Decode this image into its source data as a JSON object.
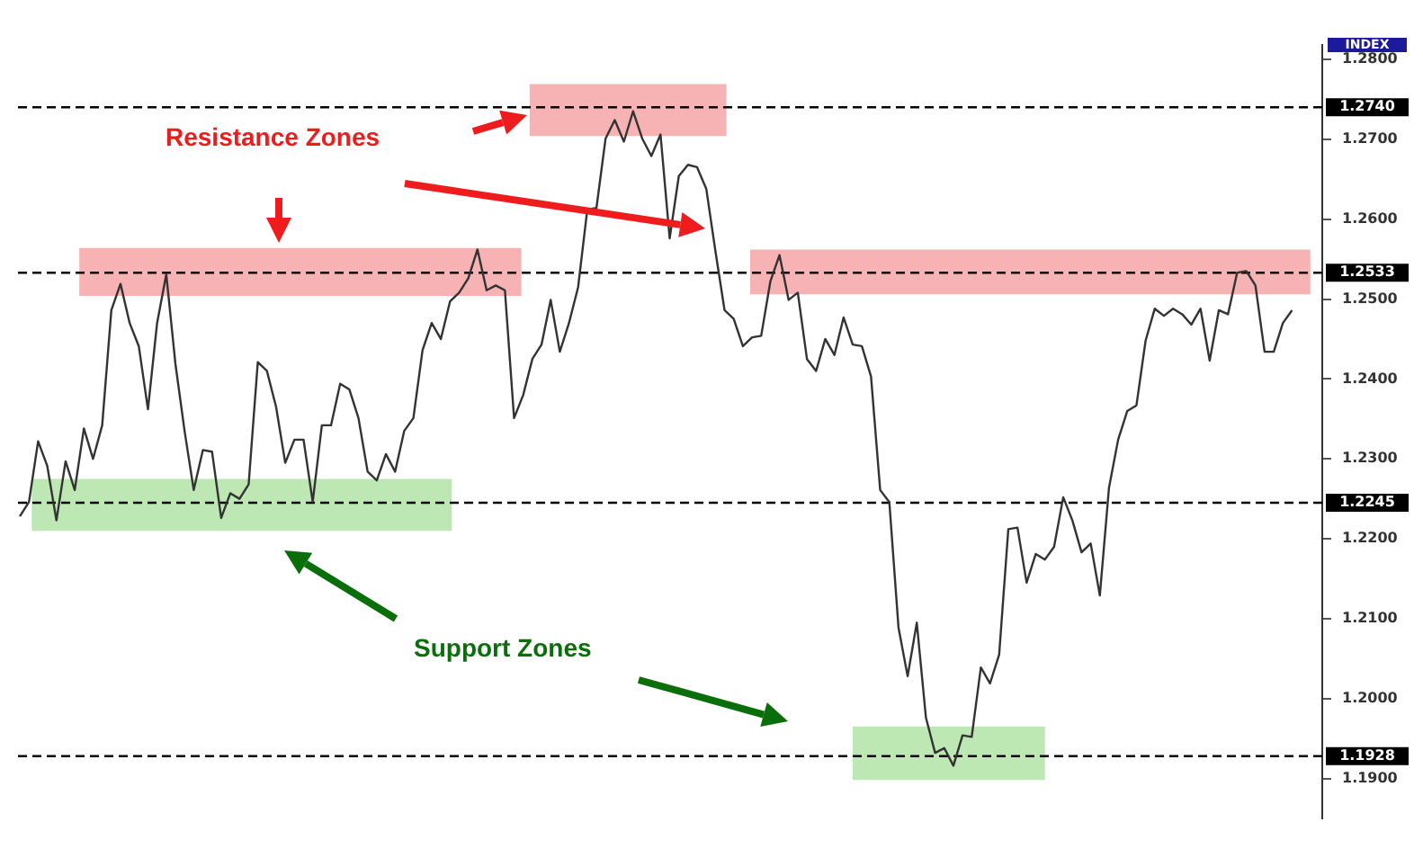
{
  "chart_data": {
    "type": "line",
    "ylabel": "INDEX",
    "categories": [
      null,
      null,
      null,
      null,
      null,
      null,
      null,
      null,
      null,
      null,
      null,
      null,
      null,
      null,
      null,
      null,
      null,
      null,
      null,
      null,
      null,
      null,
      null,
      null,
      null,
      null,
      null,
      null,
      null,
      null,
      null,
      null,
      null,
      null,
      null,
      null,
      null,
      null,
      null,
      null,
      null,
      null,
      null,
      null,
      null,
      null,
      null,
      null,
      null,
      null,
      null,
      null,
      null,
      null,
      null,
      null,
      null,
      null,
      null,
      null,
      null,
      null,
      null,
      null,
      null,
      null,
      null,
      null,
      null,
      null,
      null,
      null,
      null,
      null,
      null,
      null,
      null,
      null,
      null,
      null,
      null,
      null,
      null,
      null,
      null,
      null,
      null,
      null,
      null,
      null,
      null,
      null,
      null,
      null,
      null,
      null,
      null,
      null,
      null,
      null,
      null,
      null,
      null,
      null,
      null,
      null,
      null,
      null,
      null,
      null,
      null,
      null,
      null,
      null,
      null,
      null,
      null,
      null,
      null,
      null,
      null,
      null,
      null,
      null,
      null,
      null,
      null,
      null,
      null,
      null,
      null,
      null,
      null,
      null,
      null,
      null,
      null,
      null,
      null,
      null
    ],
    "series": [
      {
        "color": "#333333",
        "values": [
          1.2228,
          1.2246,
          1.2322,
          1.2291,
          1.2223,
          1.2297,
          1.2261,
          1.2338,
          1.23,
          1.2342,
          1.2486,
          1.2519,
          1.247,
          1.2441,
          1.2362,
          1.247,
          1.2531,
          1.2419,
          1.2335,
          1.2261,
          1.2311,
          1.2309,
          1.2226,
          1.2257,
          1.225,
          1.2268,
          1.2421,
          1.241,
          1.2365,
          1.2295,
          1.2324,
          1.2324,
          1.2246,
          1.2342,
          1.2342,
          1.2394,
          1.2387,
          1.2351,
          1.2284,
          1.2273,
          1.2306,
          1.2284,
          1.2335,
          1.2351,
          1.2436,
          1.247,
          1.245,
          1.2497,
          1.2508,
          1.2526,
          1.2562,
          1.2511,
          1.2517,
          1.2511,
          1.2351,
          1.238,
          1.2425,
          1.2443,
          1.2499,
          1.2434,
          1.247,
          1.2515,
          1.2612,
          1.2614,
          1.2701,
          1.2724,
          1.2697,
          1.2735,
          1.2701,
          1.2679,
          1.2706,
          1.2576,
          1.2654,
          1.2668,
          1.2665,
          1.2638,
          1.256,
          1.2486,
          1.2475,
          1.2441,
          1.2452,
          1.2454,
          1.2522,
          1.2555,
          1.2499,
          1.2508,
          1.2425,
          1.241,
          1.245,
          1.243,
          1.2477,
          1.2443,
          1.2441,
          1.2403,
          1.2261,
          1.2246,
          1.2089,
          1.2028,
          1.2095,
          1.1976,
          1.1932,
          1.1938,
          1.1916,
          1.1954,
          1.1952,
          1.2039,
          1.2019,
          1.2055,
          1.2212,
          1.2214,
          1.2145,
          1.2181,
          1.2174,
          1.219,
          1.2252,
          1.2223,
          1.2183,
          1.2194,
          1.2129,
          1.2264,
          1.2324,
          1.236,
          1.2367,
          1.2448,
          1.2488,
          1.2479,
          1.2488,
          1.2481,
          1.2468,
          1.2488,
          1.2423,
          1.2486,
          1.2481,
          1.2533,
          1.2535,
          1.2517,
          1.2434,
          1.2434,
          1.247,
          1.2486
        ]
      }
    ],
    "marker": "none",
    "line_style": "solid",
    "ylim": [
      1.185,
      1.2818
    ],
    "yticks": [
      {
        "value": 1.19,
        "label": "1.1900"
      },
      {
        "value": 1.2,
        "label": "1.2000"
      },
      {
        "value": 1.21,
        "label": "1.2100"
      },
      {
        "value": 1.22,
        "label": "1.2200"
      },
      {
        "value": 1.23,
        "label": "1.2300"
      },
      {
        "value": 1.24,
        "label": "1.2400"
      },
      {
        "value": 1.25,
        "label": "1.2500"
      },
      {
        "value": 1.26,
        "label": "1.2600"
      },
      {
        "value": 1.27,
        "label": "1.2700"
      },
      {
        "value": 1.28,
        "label": "1.2800"
      }
    ],
    "ref_lines": [
      {
        "axis": "y",
        "value": 1.274,
        "label": "1.2740",
        "line_style": "dashed",
        "color": "#000000"
      },
      {
        "axis": "y",
        "value": 1.2533,
        "label": "1.2533",
        "line_style": "dashed",
        "color": "#000000"
      },
      {
        "axis": "y",
        "value": 1.2245,
        "label": "1.2245",
        "line_style": "dashed",
        "color": "#000000"
      },
      {
        "axis": "y",
        "value": 1.1928,
        "label": "1.1928",
        "line_style": "dashed",
        "color": "#000000"
      }
    ],
    "bands": [
      {
        "axis": "y",
        "from": 1.2504,
        "to": 1.2564,
        "color": "#f7b3b3"
      },
      {
        "axis": "y",
        "from": 1.2704,
        "to": 1.2769,
        "color": "#f7b3b3"
      },
      {
        "axis": "y",
        "from": 1.2506,
        "to": 1.2562,
        "color": "#f7b3b3"
      },
      {
        "axis": "y",
        "from": 1.221,
        "to": 1.2275,
        "color": "#bde8b4"
      },
      {
        "axis": "y",
        "from": 1.1898,
        "to": 1.1965,
        "color": "#bde8b4"
      }
    ],
    "annotations": [
      "Resistance Zones",
      "Support Zones"
    ],
    "legend": false
  }
}
